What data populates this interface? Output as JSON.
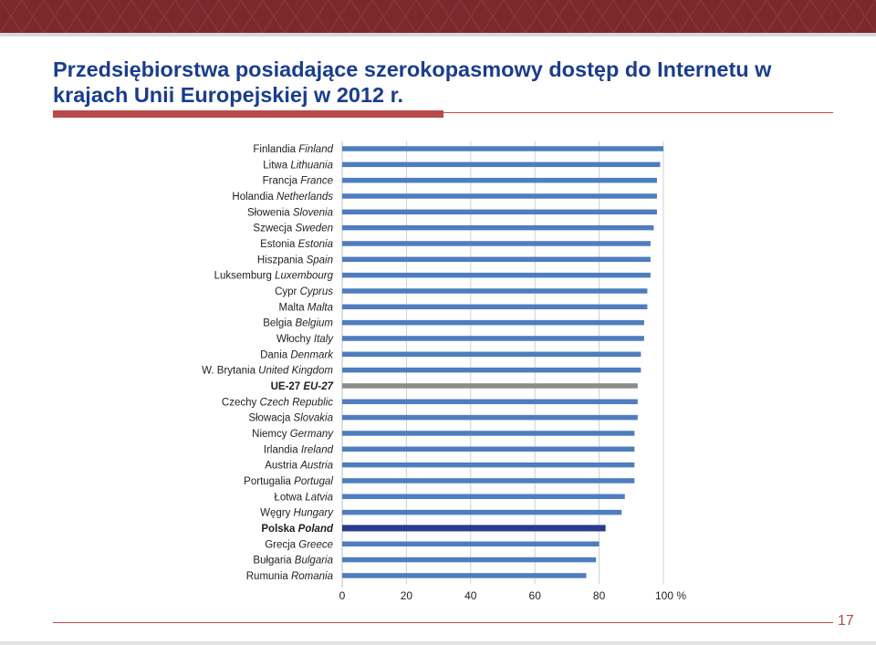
{
  "slide": {
    "title": "Przedsiębiorstwa posiadające szerokopasmowy dostęp do Internetu w krajach Unii Europejskiej w 2012 r.",
    "page_number": "17"
  },
  "colors": {
    "bar": "#4f7dbf",
    "eu_bar": "#8c8c8c",
    "highlight_bar": "#2b3a8a",
    "header": "#7a2a2c",
    "title": "#1a3d8c",
    "accent": "#b94a4a"
  },
  "chart_data": {
    "type": "bar",
    "orientation": "horizontal",
    "categories": [
      {
        "pl": "Finlandia",
        "en": "Finland",
        "value": 100
      },
      {
        "pl": "Litwa",
        "en": "Lithuania",
        "value": 99
      },
      {
        "pl": "Francja",
        "en": "France",
        "value": 98
      },
      {
        "pl": "Holandia",
        "en": "Netherlands",
        "value": 98
      },
      {
        "pl": "Słowenia",
        "en": "Slovenia",
        "value": 98
      },
      {
        "pl": "Szwecja",
        "en": "Sweden",
        "value": 97
      },
      {
        "pl": "Estonia",
        "en": "Estonia",
        "value": 96
      },
      {
        "pl": "Hiszpania",
        "en": "Spain",
        "value": 96
      },
      {
        "pl": "Luksemburg",
        "en": "Luxembourg",
        "value": 96
      },
      {
        "pl": "Cypr",
        "en": "Cyprus",
        "value": 95
      },
      {
        "pl": "Malta",
        "en": "Malta",
        "value": 95
      },
      {
        "pl": "Belgia",
        "en": "Belgium",
        "value": 94
      },
      {
        "pl": "Włochy",
        "en": "Italy",
        "value": 94
      },
      {
        "pl": "Dania",
        "en": "Denmark",
        "value": 93
      },
      {
        "pl": "W. Brytania",
        "en": "United Kingdom",
        "value": 93
      },
      {
        "pl": "UE-27",
        "en": "EU-27",
        "value": 92,
        "style": "eu"
      },
      {
        "pl": "Czechy",
        "en": "Czech Republic",
        "value": 92
      },
      {
        "pl": "Słowacja",
        "en": "Slovakia",
        "value": 92
      },
      {
        "pl": "Niemcy",
        "en": "Germany",
        "value": 91
      },
      {
        "pl": "Irlandia",
        "en": "Ireland",
        "value": 91
      },
      {
        "pl": "Austria",
        "en": "Austria",
        "value": 91
      },
      {
        "pl": "Portugalia",
        "en": "Portugal",
        "value": 91
      },
      {
        "pl": "Łotwa",
        "en": "Latvia",
        "value": 88
      },
      {
        "pl": "Węgry",
        "en": "Hungary",
        "value": 87
      },
      {
        "pl": "Polska",
        "en": "Poland",
        "value": 82,
        "style": "highlight"
      },
      {
        "pl": "Grecja",
        "en": "Greece",
        "value": 80
      },
      {
        "pl": "Bułgaria",
        "en": "Bulgaria",
        "value": 79
      },
      {
        "pl": "Rumunia",
        "en": "Romania",
        "value": 76
      }
    ],
    "xlim": [
      0,
      100
    ],
    "xticks": [
      0,
      20,
      40,
      60,
      80,
      100
    ],
    "xunit": "%",
    "grid": "vertical"
  }
}
